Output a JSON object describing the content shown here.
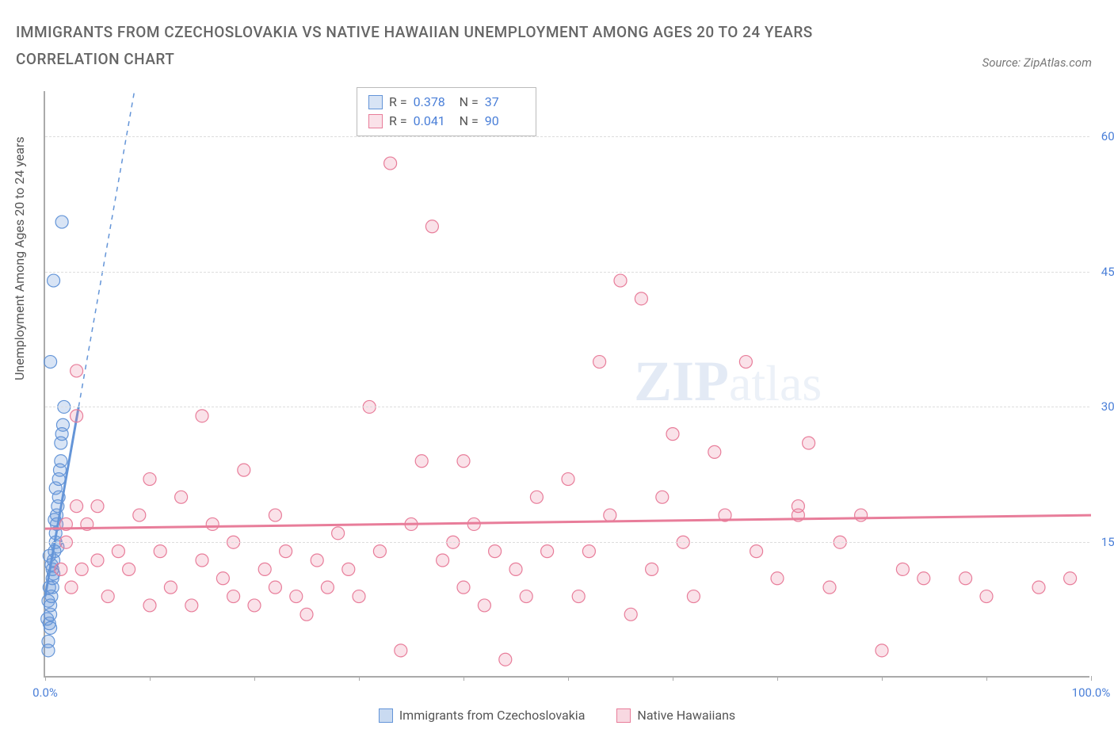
{
  "title": "IMMIGRANTS FROM CZECHOSLOVAKIA VS NATIVE HAWAIIAN UNEMPLOYMENT AMONG AGES 20 TO 24 YEARS CORRELATION CHART",
  "source_label": "Source: ZipAtlas.com",
  "ylabel": "Unemployment Among Ages 20 to 24 years",
  "watermark_zip": "ZIP",
  "watermark_atlas": "atlas",
  "chart": {
    "type": "scatter",
    "xlim": [
      0,
      100
    ],
    "ylim": [
      0,
      65
    ],
    "xticks": [
      0,
      10,
      20,
      30,
      40,
      50,
      60,
      70,
      80,
      90,
      100
    ],
    "xtick_labels": {
      "0": "0.0%",
      "100": "100.0%"
    },
    "yticks": [
      15,
      30,
      45,
      60
    ],
    "ytick_labels": [
      "15.0%",
      "30.0%",
      "45.0%",
      "60.0%"
    ],
    "grid_color": "#dddddd",
    "axis_color": "#aaaaaa",
    "tick_label_color": "#4a7fd8",
    "marker_radius": 8,
    "marker_opacity": 0.35,
    "series": [
      {
        "name": "Immigrants from Czechoslovakia",
        "color": "#6495d8",
        "fill": "rgba(100,149,216,0.25)",
        "stroke": "#6495d8",
        "R_label": "R =",
        "R": "0.378",
        "N_label": "N =",
        "N": "37",
        "trend": {
          "x1": 0,
          "y1": 9,
          "x2": 3.2,
          "y2": 30,
          "dash_continue_to_y": 65
        },
        "points": [
          [
            0.3,
            3.0
          ],
          [
            0.3,
            4.0
          ],
          [
            0.4,
            6.0
          ],
          [
            0.5,
            7.0
          ],
          [
            0.5,
            8.0
          ],
          [
            0.6,
            9.0
          ],
          [
            0.7,
            10.0
          ],
          [
            0.7,
            11.0
          ],
          [
            0.7,
            12.0
          ],
          [
            0.8,
            11.5
          ],
          [
            0.8,
            13.0
          ],
          [
            0.9,
            14.0
          ],
          [
            1.0,
            15.0
          ],
          [
            1.0,
            16.0
          ],
          [
            1.1,
            17.0
          ],
          [
            1.1,
            18.0
          ],
          [
            1.2,
            19.0
          ],
          [
            1.3,
            20.0
          ],
          [
            1.3,
            22.0
          ],
          [
            1.4,
            23.0
          ],
          [
            1.5,
            24.0
          ],
          [
            1.5,
            26.0
          ],
          [
            1.6,
            27.0
          ],
          [
            1.7,
            28.0
          ],
          [
            1.8,
            30.0
          ],
          [
            0.6,
            12.5
          ],
          [
            0.4,
            10.0
          ],
          [
            0.3,
            8.5
          ],
          [
            0.9,
            17.5
          ],
          [
            1.0,
            21.0
          ],
          [
            0.5,
            35.0
          ],
          [
            0.8,
            44.0
          ],
          [
            1.6,
            50.5
          ],
          [
            0.5,
            5.5
          ],
          [
            0.2,
            6.5
          ],
          [
            0.4,
            13.5
          ],
          [
            1.2,
            14.5
          ]
        ]
      },
      {
        "name": "Native Hawaiians",
        "color": "#e87d9a",
        "fill": "rgba(232,125,154,0.22)",
        "stroke": "#e87d9a",
        "R_label": "R =",
        "R": "0.041",
        "N_label": "N =",
        "N": "90",
        "trend": {
          "x1": 0,
          "y1": 16.5,
          "x2": 100,
          "y2": 18.0
        },
        "points": [
          [
            1.5,
            12
          ],
          [
            2,
            15
          ],
          [
            2,
            17
          ],
          [
            2.5,
            10
          ],
          [
            3,
            19
          ],
          [
            3,
            29
          ],
          [
            3,
            34
          ],
          [
            3.5,
            12
          ],
          [
            4,
            17
          ],
          [
            5,
            13
          ],
          [
            5,
            19
          ],
          [
            6,
            9
          ],
          [
            7,
            14
          ],
          [
            8,
            12
          ],
          [
            9,
            18
          ],
          [
            10,
            8
          ],
          [
            10,
            22
          ],
          [
            11,
            14
          ],
          [
            12,
            10
          ],
          [
            13,
            20
          ],
          [
            14,
            8
          ],
          [
            15,
            29
          ],
          [
            15,
            13
          ],
          [
            16,
            17
          ],
          [
            17,
            11
          ],
          [
            18,
            9
          ],
          [
            18,
            15
          ],
          [
            19,
            23
          ],
          [
            20,
            8
          ],
          [
            21,
            12
          ],
          [
            22,
            10
          ],
          [
            22,
            18
          ],
          [
            23,
            14
          ],
          [
            24,
            9
          ],
          [
            25,
            7
          ],
          [
            26,
            13
          ],
          [
            27,
            10
          ],
          [
            28,
            16
          ],
          [
            29,
            12
          ],
          [
            30,
            9
          ],
          [
            31,
            30
          ],
          [
            32,
            14
          ],
          [
            33,
            57
          ],
          [
            34,
            3
          ],
          [
            35,
            17
          ],
          [
            36,
            24
          ],
          [
            37,
            50
          ],
          [
            38,
            13
          ],
          [
            39,
            15
          ],
          [
            40,
            10
          ],
          [
            40,
            24
          ],
          [
            41,
            17
          ],
          [
            42,
            8
          ],
          [
            43,
            14
          ],
          [
            44,
            2
          ],
          [
            45,
            12
          ],
          [
            46,
            9
          ],
          [
            47,
            20
          ],
          [
            48,
            14
          ],
          [
            50,
            22
          ],
          [
            51,
            9
          ],
          [
            52,
            14
          ],
          [
            53,
            35
          ],
          [
            54,
            18
          ],
          [
            55,
            44
          ],
          [
            56,
            7
          ],
          [
            57,
            42
          ],
          [
            58,
            12
          ],
          [
            59,
            20
          ],
          [
            60,
            27
          ],
          [
            61,
            15
          ],
          [
            62,
            9
          ],
          [
            64,
            25
          ],
          [
            65,
            18
          ],
          [
            67,
            35
          ],
          [
            68,
            14
          ],
          [
            70,
            11
          ],
          [
            72,
            18
          ],
          [
            73,
            26
          ],
          [
            75,
            10
          ],
          [
            76,
            15
          ],
          [
            78,
            18
          ],
          [
            80,
            3
          ],
          [
            82,
            12
          ],
          [
            84,
            11
          ],
          [
            88,
            11
          ],
          [
            90,
            9
          ],
          [
            95,
            10
          ],
          [
            98,
            11
          ],
          [
            72,
            19
          ]
        ]
      }
    ]
  },
  "legend_bottom": [
    {
      "label": "Immigrants from Czechoslovakia",
      "fill": "rgba(100,149,216,0.35)",
      "stroke": "#6495d8"
    },
    {
      "label": "Native Hawaiians",
      "fill": "rgba(232,125,154,0.3)",
      "stroke": "#e87d9a"
    }
  ]
}
